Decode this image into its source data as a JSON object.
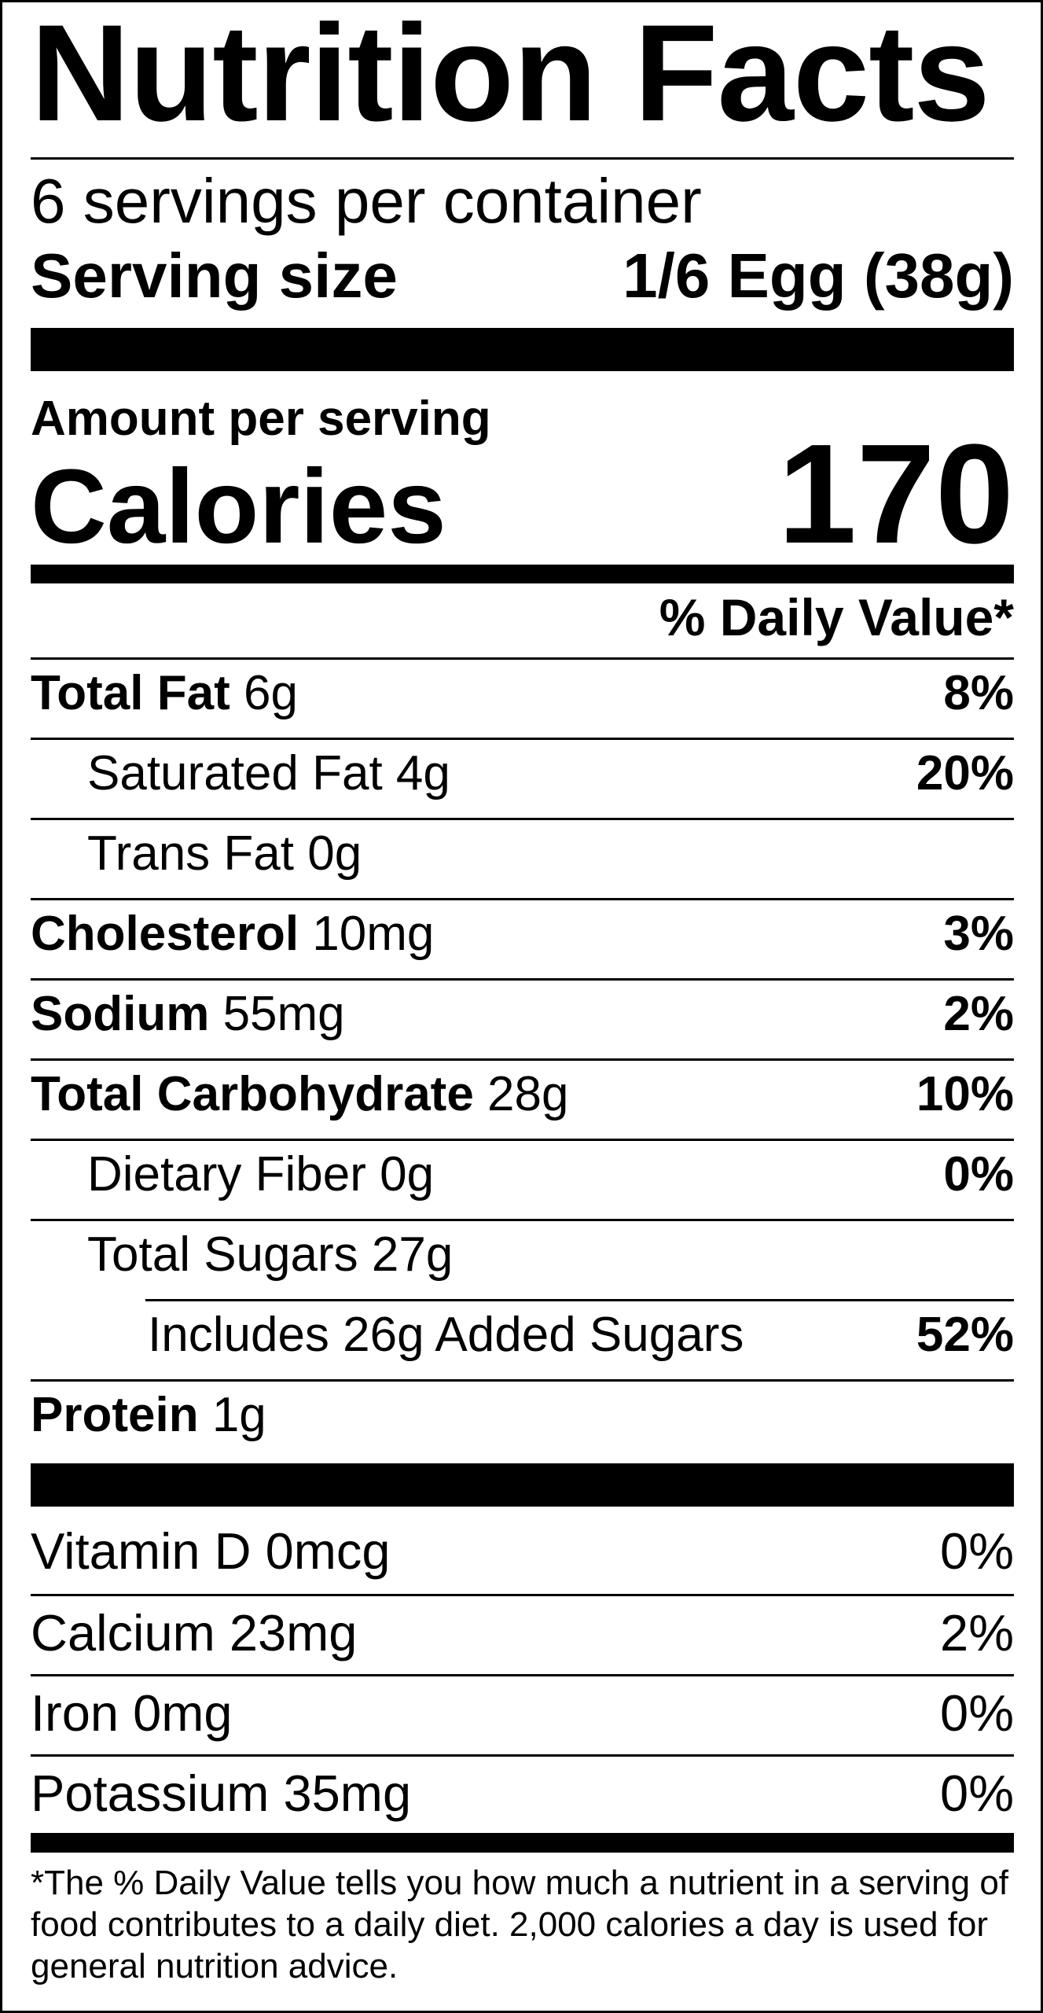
{
  "title": "Nutrition Facts",
  "servings_per_container": "6 servings per container",
  "serving_size": {
    "label": "Serving size",
    "value": "1/6 Egg (38g)"
  },
  "amount_per_serving": "Amount per serving",
  "calories": {
    "label": "Calories",
    "value": "170"
  },
  "daily_value_header": "% Daily Value*",
  "nutrients": [
    {
      "name": "Total Fat",
      "amount": "6g",
      "dv": "8%"
    },
    {
      "name": "Saturated Fat",
      "amount": "4g",
      "dv": "20%"
    },
    {
      "name": "Trans Fat",
      "amount": "0g",
      "dv": ""
    },
    {
      "name": "Cholesterol",
      "amount": "10mg",
      "dv": "3%"
    },
    {
      "name": "Sodium",
      "amount": "55mg",
      "dv": "2%"
    },
    {
      "name": "Total Carbohydrate",
      "amount": "28g",
      "dv": "10%"
    },
    {
      "name": "Dietary Fiber",
      "amount": "0g",
      "dv": "0%"
    },
    {
      "name": "Total Sugars",
      "amount": "27g",
      "dv": ""
    },
    {
      "name": "Includes 26g Added Sugars",
      "amount": "",
      "dv": "52%"
    },
    {
      "name": "Protein",
      "amount": "1g",
      "dv": ""
    }
  ],
  "vitamins": [
    {
      "text": "Vitamin D 0mcg",
      "dv": "0%"
    },
    {
      "text": "Calcium 23mg",
      "dv": "2%"
    },
    {
      "text": "Iron 0mg",
      "dv": "0%"
    },
    {
      "text": "Potassium 35mg",
      "dv": "0%"
    }
  ],
  "footnote": "*The % Daily Value tells you how much a nutrient in a serving of food contributes to a daily diet. 2,000 calories a day is used for general nutrition advice."
}
